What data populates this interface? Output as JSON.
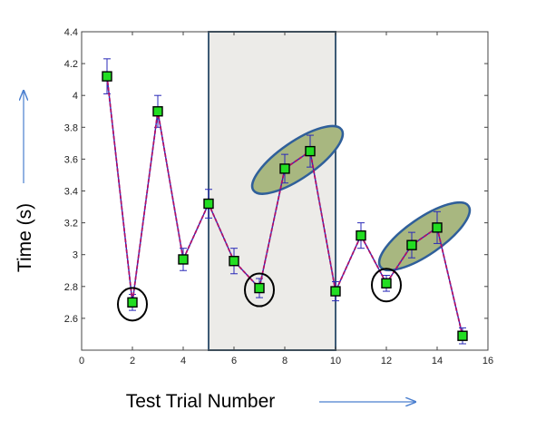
{
  "chart_data": {
    "type": "line",
    "xlabel": "Test Trial Number",
    "ylabel": "Time (s)",
    "xlim": [
      0,
      16
    ],
    "ylim": [
      2.4,
      4.4
    ],
    "x_ticks": [
      0,
      2,
      4,
      6,
      8,
      10,
      12,
      14,
      16
    ],
    "y_ticks": [
      2.6,
      2.8,
      3,
      3.2,
      3.4,
      3.6,
      3.8,
      4,
      4.2,
      4.4
    ],
    "x_tick_labels": [
      "0",
      "2",
      "4",
      "6",
      "8",
      "10",
      "12",
      "14",
      "16"
    ],
    "y_tick_labels": [
      "2.6",
      "2.8",
      "3",
      "3.2",
      "3.4",
      "3.6",
      "3.8",
      "4",
      "4.2",
      "4.4"
    ],
    "grid": false,
    "series": [
      {
        "x": [
          1,
          2,
          3,
          4,
          5,
          6,
          7,
          8,
          9,
          10,
          11,
          12,
          13,
          14,
          15
        ],
        "values": [
          4.12,
          2.7,
          3.9,
          2.97,
          3.32,
          2.96,
          2.79,
          3.54,
          3.65,
          2.77,
          3.12,
          2.82,
          3.06,
          3.17,
          2.49
        ],
        "error": [
          0.11,
          0.05,
          0.1,
          0.07,
          0.09,
          0.08,
          0.06,
          0.09,
          0.1,
          0.06,
          0.08,
          0.05,
          0.08,
          0.1,
          0.05
        ],
        "marker": "square",
        "marker_color": "#22dd22",
        "line_color": "#b0106a",
        "error_color": "#2a2ab8"
      }
    ],
    "annotations": {
      "shaded_region": {
        "x_from": 5,
        "x_to": 10,
        "fill": "#ecebe8",
        "stroke": "#3d5a75"
      },
      "circled_points": [
        2,
        7,
        12
      ],
      "highlight_ellipses": [
        {
          "from_x": 8,
          "to_x": 9
        },
        {
          "from_x": 13,
          "to_x": 14
        }
      ],
      "ellipse_fill": "#a8b780",
      "ellipse_stroke": "#2f5f9a",
      "arrow_color": "#4a7fcf"
    }
  }
}
